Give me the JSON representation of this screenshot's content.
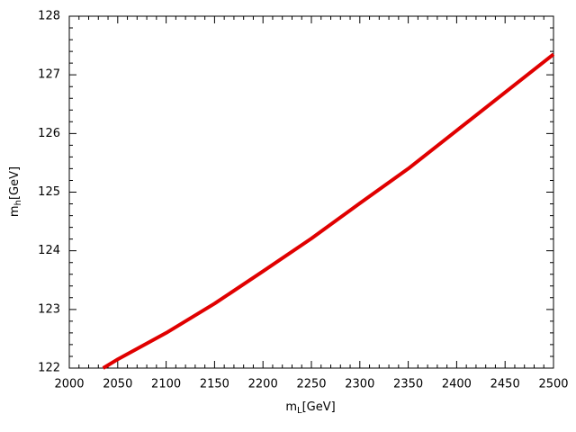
{
  "chart_data": {
    "type": "line",
    "x_label": {
      "base": "m",
      "sub": "L",
      "unit": "[GeV]"
    },
    "y_label": {
      "base": "m",
      "sub": "h",
      "unit": "[GeV]"
    },
    "xlim": [
      2000,
      2500
    ],
    "ylim": [
      122,
      128
    ],
    "xticks": [
      2000,
      2050,
      2100,
      2150,
      2200,
      2250,
      2300,
      2350,
      2400,
      2450,
      2500
    ],
    "yticks": [
      122,
      123,
      124,
      125,
      126,
      127,
      128
    ],
    "minor_ticks_per_major": 5,
    "series": [
      {
        "color": "#e00000",
        "x": [
          2035,
          2050,
          2100,
          2150,
          2200,
          2250,
          2300,
          2350,
          2400,
          2450,
          2500
        ],
        "values": [
          122.0,
          122.15,
          122.6,
          123.1,
          123.65,
          124.21,
          124.81,
          125.4,
          126.05,
          126.7,
          127.35
        ]
      }
    ]
  }
}
